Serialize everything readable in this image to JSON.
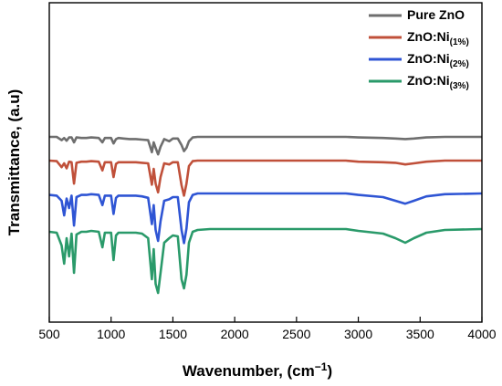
{
  "chart_data": {
    "type": "line",
    "title": "",
    "xlabel": "Wavenumber, (cm",
    "xlabel_sup": "−1",
    "xlabel_close": ")",
    "ylabel": "Transmittance, (a.u)",
    "xlim": [
      500,
      4000
    ],
    "xticks": [
      500,
      1000,
      1500,
      2000,
      2500,
      3000,
      3500,
      4000
    ],
    "yticks_shown": false,
    "grid": false,
    "legend_position": "top-right",
    "offset_traces": true,
    "series": [
      {
        "name": "Pure ZnO",
        "name_sub": "",
        "color": "#6e6e6e",
        "points": [
          [
            500,
            1.0
          ],
          [
            560,
            1.0
          ],
          [
            600,
            0.94
          ],
          [
            620,
            0.98
          ],
          [
            640,
            0.93
          ],
          [
            660,
            0.99
          ],
          [
            680,
            0.99
          ],
          [
            700,
            0.9
          ],
          [
            720,
            0.99
          ],
          [
            760,
            0.98
          ],
          [
            800,
            0.98
          ],
          [
            840,
            0.99
          ],
          [
            900,
            0.98
          ],
          [
            930,
            0.9
          ],
          [
            950,
            0.98
          ],
          [
            1000,
            0.98
          ],
          [
            1020,
            0.88
          ],
          [
            1040,
            0.96
          ],
          [
            1060,
            0.98
          ],
          [
            1100,
            0.97
          ],
          [
            1150,
            0.96
          ],
          [
            1200,
            0.96
          ],
          [
            1250,
            0.95
          ],
          [
            1300,
            0.94
          ],
          [
            1330,
            0.72
          ],
          [
            1345,
            0.9
          ],
          [
            1360,
            0.8
          ],
          [
            1380,
            0.68
          ],
          [
            1400,
            0.82
          ],
          [
            1430,
            0.96
          ],
          [
            1470,
            0.92
          ],
          [
            1500,
            0.97
          ],
          [
            1540,
            0.97
          ],
          [
            1570,
            0.85
          ],
          [
            1590,
            0.74
          ],
          [
            1610,
            0.8
          ],
          [
            1630,
            0.92
          ],
          [
            1660,
            0.99
          ],
          [
            1700,
            1.0
          ],
          [
            1800,
            1.0
          ],
          [
            1900,
            1.0
          ],
          [
            2000,
            1.0
          ],
          [
            2200,
            1.0
          ],
          [
            2500,
            1.0
          ],
          [
            2900,
            1.0
          ],
          [
            3000,
            0.99
          ],
          [
            3200,
            0.98
          ],
          [
            3300,
            0.97
          ],
          [
            3380,
            0.96
          ],
          [
            3450,
            0.97
          ],
          [
            3550,
            0.99
          ],
          [
            3700,
            1.0
          ],
          [
            4000,
            1.0
          ]
        ]
      },
      {
        "name": "ZnO:Ni",
        "name_sub": "(1%)",
        "color": "#c0503a",
        "points": [
          [
            500,
            1.0
          ],
          [
            560,
            0.99
          ],
          [
            600,
            0.88
          ],
          [
            620,
            0.95
          ],
          [
            640,
            0.86
          ],
          [
            660,
            0.98
          ],
          [
            680,
            0.97
          ],
          [
            700,
            0.58
          ],
          [
            720,
            0.96
          ],
          [
            760,
            0.98
          ],
          [
            800,
            0.98
          ],
          [
            840,
            0.99
          ],
          [
            900,
            0.98
          ],
          [
            930,
            0.82
          ],
          [
            950,
            0.97
          ],
          [
            1000,
            0.97
          ],
          [
            1020,
            0.7
          ],
          [
            1040,
            0.94
          ],
          [
            1060,
            0.97
          ],
          [
            1100,
            0.97
          ],
          [
            1150,
            0.97
          ],
          [
            1200,
            0.97
          ],
          [
            1250,
            0.96
          ],
          [
            1300,
            0.95
          ],
          [
            1330,
            0.56
          ],
          [
            1345,
            0.85
          ],
          [
            1360,
            0.58
          ],
          [
            1380,
            0.42
          ],
          [
            1400,
            0.7
          ],
          [
            1430,
            0.95
          ],
          [
            1470,
            0.93
          ],
          [
            1500,
            0.97
          ],
          [
            1540,
            0.97
          ],
          [
            1570,
            0.55
          ],
          [
            1590,
            0.36
          ],
          [
            1610,
            0.58
          ],
          [
            1630,
            0.9
          ],
          [
            1660,
            0.99
          ],
          [
            1700,
            1.0
          ],
          [
            1800,
            1.0
          ],
          [
            1900,
            1.0
          ],
          [
            2000,
            1.0
          ],
          [
            2200,
            1.0
          ],
          [
            2500,
            1.0
          ],
          [
            2900,
            1.0
          ],
          [
            3000,
            0.98
          ],
          [
            3200,
            0.97
          ],
          [
            3300,
            0.96
          ],
          [
            3380,
            0.93
          ],
          [
            3450,
            0.95
          ],
          [
            3550,
            0.98
          ],
          [
            3700,
            1.0
          ],
          [
            4000,
            1.0
          ]
        ]
      },
      {
        "name": "ZnO:Ni",
        "name_sub": "(2%)",
        "color": "#2f55d4",
        "points": [
          [
            500,
            0.98
          ],
          [
            560,
            0.97
          ],
          [
            600,
            0.9
          ],
          [
            620,
            0.7
          ],
          [
            640,
            0.93
          ],
          [
            660,
            0.8
          ],
          [
            680,
            0.97
          ],
          [
            700,
            0.56
          ],
          [
            720,
            0.95
          ],
          [
            760,
            0.98
          ],
          [
            800,
            0.98
          ],
          [
            840,
            0.99
          ],
          [
            900,
            0.98
          ],
          [
            930,
            0.84
          ],
          [
            950,
            0.97
          ],
          [
            1000,
            0.97
          ],
          [
            1020,
            0.72
          ],
          [
            1040,
            0.94
          ],
          [
            1060,
            0.97
          ],
          [
            1100,
            0.97
          ],
          [
            1150,
            0.97
          ],
          [
            1200,
            0.97
          ],
          [
            1250,
            0.96
          ],
          [
            1300,
            0.94
          ],
          [
            1330,
            0.58
          ],
          [
            1345,
            0.84
          ],
          [
            1360,
            0.5
          ],
          [
            1380,
            0.35
          ],
          [
            1400,
            0.62
          ],
          [
            1430,
            0.9
          ],
          [
            1470,
            0.92
          ],
          [
            1500,
            0.95
          ],
          [
            1540,
            0.95
          ],
          [
            1570,
            0.5
          ],
          [
            1590,
            0.32
          ],
          [
            1610,
            0.52
          ],
          [
            1630,
            0.88
          ],
          [
            1660,
            0.98
          ],
          [
            1700,
            1.0
          ],
          [
            1800,
            1.0
          ],
          [
            1900,
            1.0
          ],
          [
            2000,
            1.0
          ],
          [
            2200,
            1.0
          ],
          [
            2500,
            1.0
          ],
          [
            2900,
            1.0
          ],
          [
            3000,
            0.98
          ],
          [
            3200,
            0.95
          ],
          [
            3300,
            0.9
          ],
          [
            3380,
            0.86
          ],
          [
            3450,
            0.9
          ],
          [
            3550,
            0.96
          ],
          [
            3700,
            0.99
          ],
          [
            4000,
            1.0
          ]
        ]
      },
      {
        "name": "ZnO:Ni",
        "name_sub": "(3%)",
        "color": "#2a9a6a",
        "points": [
          [
            500,
            0.97
          ],
          [
            560,
            0.96
          ],
          [
            600,
            0.82
          ],
          [
            620,
            0.62
          ],
          [
            640,
            0.9
          ],
          [
            660,
            0.7
          ],
          [
            680,
            0.95
          ],
          [
            700,
            0.52
          ],
          [
            720,
            0.94
          ],
          [
            760,
            0.97
          ],
          [
            800,
            0.97
          ],
          [
            840,
            0.98
          ],
          [
            900,
            0.97
          ],
          [
            930,
            0.8
          ],
          [
            950,
            0.96
          ],
          [
            1000,
            0.96
          ],
          [
            1020,
            0.66
          ],
          [
            1040,
            0.93
          ],
          [
            1060,
            0.96
          ],
          [
            1100,
            0.96
          ],
          [
            1150,
            0.96
          ],
          [
            1200,
            0.96
          ],
          [
            1250,
            0.95
          ],
          [
            1300,
            0.9
          ],
          [
            1330,
            0.45
          ],
          [
            1345,
            0.78
          ],
          [
            1360,
            0.4
          ],
          [
            1380,
            0.3
          ],
          [
            1400,
            0.52
          ],
          [
            1430,
            0.85
          ],
          [
            1470,
            0.9
          ],
          [
            1500,
            0.93
          ],
          [
            1540,
            0.92
          ],
          [
            1570,
            0.45
          ],
          [
            1590,
            0.35
          ],
          [
            1610,
            0.5
          ],
          [
            1630,
            0.85
          ],
          [
            1660,
            0.97
          ],
          [
            1700,
            0.99
          ],
          [
            1800,
            1.0
          ],
          [
            1900,
            1.0
          ],
          [
            2000,
            1.0
          ],
          [
            2200,
            1.0
          ],
          [
            2500,
            1.0
          ],
          [
            2900,
            1.0
          ],
          [
            3000,
            0.98
          ],
          [
            3200,
            0.95
          ],
          [
            3300,
            0.9
          ],
          [
            3380,
            0.85
          ],
          [
            3450,
            0.9
          ],
          [
            3550,
            0.96
          ],
          [
            3700,
            0.99
          ],
          [
            4000,
            1.0
          ]
        ]
      }
    ]
  }
}
